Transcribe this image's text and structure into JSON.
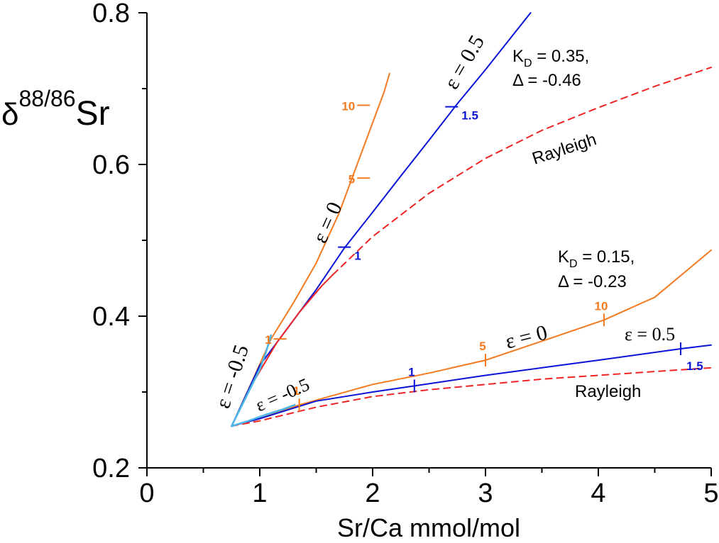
{
  "chart_data": {
    "type": "line",
    "xlabel": "Sr/Ca mmol/mol",
    "ylabel": {
      "delta": "δ",
      "superscript": "88/86",
      "base": "Sr"
    },
    "xlim": [
      0,
      5
    ],
    "ylim": [
      0.2,
      0.8
    ],
    "x_ticks": [
      0,
      1,
      2,
      3,
      4,
      5
    ],
    "y_ticks": [
      0.2,
      0.4,
      0.6,
      0.8
    ],
    "grid": false,
    "colors": {
      "eps0": "#f47a20",
      "eps05": "#0a14d6",
      "rayleigh": "#ee2424",
      "epsneg": "#4db8e8"
    },
    "series": [
      {
        "group": "KD=0.35",
        "kind": "eps0",
        "style": "solid",
        "x": [
          0.75,
          0.95,
          1.1,
          1.3,
          1.5,
          1.7,
          1.9,
          2.1,
          2.15
        ],
        "y": [
          0.255,
          0.32,
          0.37,
          0.418,
          0.47,
          0.535,
          0.615,
          0.695,
          0.72
        ]
      },
      {
        "group": "KD=0.35",
        "kind": "eps05",
        "style": "solid",
        "x": [
          0.75,
          1.0,
          1.25,
          1.5,
          1.75,
          2.0,
          2.25,
          2.5,
          2.75,
          3.0,
          3.25,
          3.4
        ],
        "y": [
          0.255,
          0.335,
          0.385,
          0.435,
          0.49,
          0.537,
          0.585,
          0.632,
          0.68,
          0.725,
          0.772,
          0.8
        ]
      },
      {
        "group": "KD=0.35",
        "kind": "rayleigh",
        "style": "solid",
        "x": [
          0.75,
          0.95,
          1.15,
          1.35,
          1.55,
          1.65
        ],
        "y": [
          0.255,
          0.315,
          0.365,
          0.405,
          0.44,
          0.455
        ]
      },
      {
        "group": "KD=0.35",
        "kind": "rayleigh",
        "style": "dashed",
        "x": [
          1.65,
          2.0,
          2.5,
          3.0,
          3.5,
          4.0,
          4.5,
          5.0
        ],
        "y": [
          0.455,
          0.505,
          0.562,
          0.608,
          0.645,
          0.675,
          0.703,
          0.728
        ]
      },
      {
        "group": "KD=0.35",
        "kind": "epsneg",
        "style": "solid",
        "x": [
          0.75,
          0.9,
          1.0,
          1.05,
          1.08,
          1.1
        ],
        "y": [
          0.255,
          0.3,
          0.33,
          0.35,
          0.365,
          0.375
        ]
      },
      {
        "group": "KD=0.15",
        "kind": "eps0",
        "style": "solid",
        "x": [
          0.75,
          1.0,
          1.35,
          2.0,
          2.5,
          3.0,
          3.5,
          4.05,
          4.5,
          5.0
        ],
        "y": [
          0.255,
          0.265,
          0.283,
          0.31,
          0.325,
          0.342,
          0.367,
          0.395,
          0.425,
          0.487
        ]
      },
      {
        "group": "KD=0.15",
        "kind": "eps05",
        "style": "solid",
        "x": [
          0.75,
          1.0,
          1.5,
          2.0,
          2.37,
          3.0,
          3.5,
          4.0,
          4.73,
          5.0
        ],
        "y": [
          0.255,
          0.265,
          0.288,
          0.3,
          0.308,
          0.322,
          0.332,
          0.342,
          0.357,
          0.362
        ]
      },
      {
        "group": "KD=0.15",
        "kind": "rayleigh",
        "style": "dashed",
        "x": [
          0.75,
          1.0,
          1.5,
          2.0,
          2.5,
          3.0,
          3.5,
          4.0,
          4.5,
          5.0
        ],
        "y": [
          0.255,
          0.262,
          0.28,
          0.294,
          0.303,
          0.31,
          0.317,
          0.322,
          0.327,
          0.332
        ]
      },
      {
        "group": "KD=0.15",
        "kind": "epsneg",
        "style": "solid",
        "x": [
          0.75,
          0.9,
          1.05,
          1.2,
          1.31
        ],
        "y": [
          0.255,
          0.262,
          0.27,
          0.277,
          0.283
        ]
      }
    ],
    "markers": [
      {
        "x": 1.92,
        "y": 0.678,
        "label": "10",
        "kind": "eps0",
        "side": "left"
      },
      {
        "x": 1.92,
        "y": 0.582,
        "label": "5",
        "kind": "eps0",
        "side": "left"
      },
      {
        "x": 1.18,
        "y": 0.37,
        "label": "1",
        "kind": "eps0",
        "side": "left"
      },
      {
        "x": 2.7,
        "y": 0.676,
        "label": "1.5",
        "kind": "eps05",
        "side": "right"
      },
      {
        "x": 1.75,
        "y": 0.491,
        "label": "1",
        "kind": "eps05",
        "side": "right"
      },
      {
        "x": 1.35,
        "y": 0.283,
        "label": "1",
        "kind": "eps0",
        "side": "up"
      },
      {
        "x": 3.0,
        "y": 0.342,
        "label": "5",
        "kind": "eps0",
        "side": "up"
      },
      {
        "x": 4.05,
        "y": 0.395,
        "label": "10",
        "kind": "eps0",
        "side": "up"
      },
      {
        "x": 2.37,
        "y": 0.308,
        "label": "1",
        "kind": "eps05",
        "side": "up"
      },
      {
        "x": 4.73,
        "y": 0.357,
        "label": "1.5",
        "kind": "eps05",
        "side": "down"
      }
    ],
    "annotations": {
      "kd_high": {
        "k": "K",
        "sub": "D",
        "value": " = 0.35,",
        "delta": "Δ = -0.46"
      },
      "kd_low": {
        "k": "K",
        "sub": "D",
        "value": " = 0.15,",
        "delta": "Δ = -0.23"
      },
      "rayleigh_high": "Rayleigh",
      "rayleigh_low": "Rayleigh",
      "eps_05_high": "ε = 0.5",
      "eps_0_high": "ε = 0",
      "eps_neg_high": "ε = -0.5",
      "eps_0_low": "ε = 0",
      "eps_05_low": "ε = 0.5",
      "eps_neg_low": "ε = -0.5"
    }
  }
}
